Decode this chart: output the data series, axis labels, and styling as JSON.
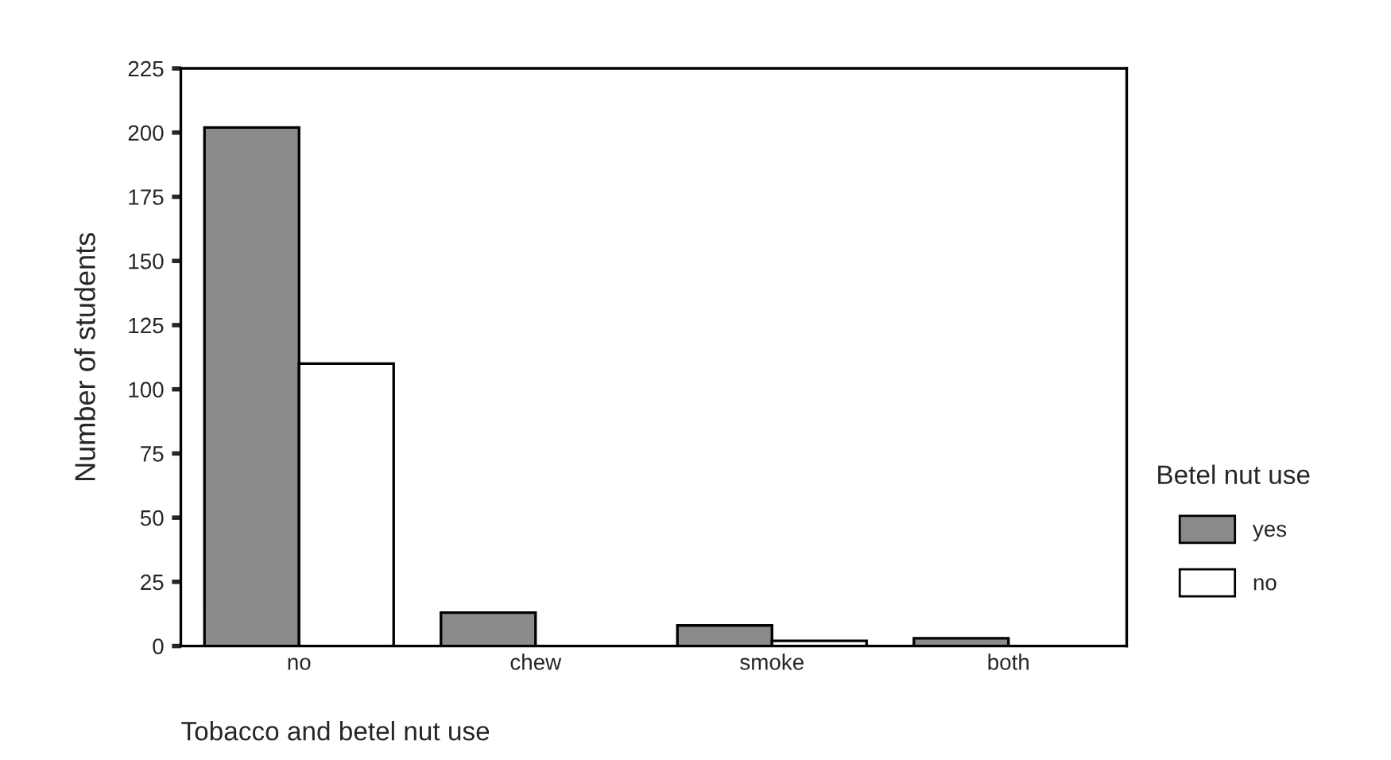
{
  "chart_data": {
    "type": "bar",
    "xlabel": "Tobacco and betel nut use",
    "ylabel": "Number of students",
    "legend_title": "Betel nut use",
    "categories": [
      "no",
      "chew",
      "smoke",
      "both"
    ],
    "series": [
      {
        "name": "yes",
        "color": "#8a8a8a",
        "values": [
          202,
          13,
          8,
          3
        ]
      },
      {
        "name": "no",
        "color": "#ffffff",
        "values": [
          110,
          null,
          2,
          null
        ]
      }
    ],
    "ylim": [
      0,
      225
    ],
    "yticks": [
      0,
      25,
      50,
      75,
      100,
      125,
      150,
      175,
      200,
      225
    ],
    "grid": false,
    "legend": "right"
  }
}
